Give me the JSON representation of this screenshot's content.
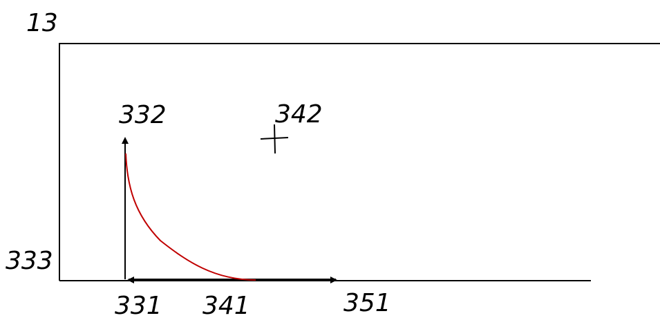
{
  "labels": {
    "figure": "13",
    "vertical_arrow": "332",
    "cross_mark": "342",
    "baseline": "333",
    "origin": "331",
    "curve_end": "341",
    "horizontal_arrow": "351"
  },
  "colors": {
    "line": "#000000",
    "curve": "#c00000",
    "background": "#ffffff"
  }
}
